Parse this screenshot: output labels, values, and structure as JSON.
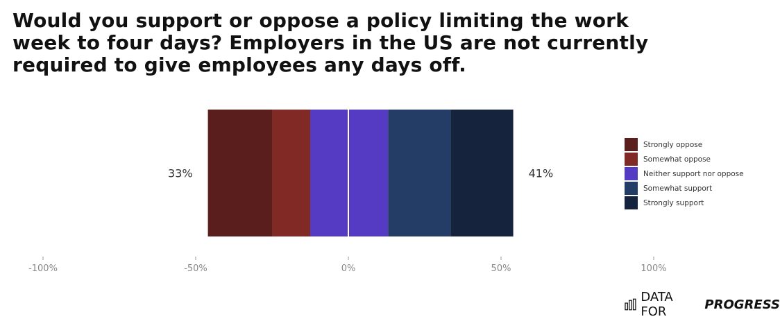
{
  "chart_data": {
    "type": "bar",
    "subtype": "diverging-stacked",
    "title": "Would you support or oppose a policy limiting the work week to four days? Employers in the US are not currently required to give employees any days off.",
    "xlim": [
      -100,
      100
    ],
    "x_ticks": [
      -100,
      -50,
      0,
      50,
      100
    ],
    "x_tick_labels": [
      "-100%",
      "-50%",
      "0%",
      "50%",
      "100%"
    ],
    "segments": [
      {
        "name": "Strongly oppose",
        "start": -46,
        "end": -25,
        "color": "#5a1f1c"
      },
      {
        "name": "Somewhat oppose",
        "start": -25,
        "end": -12.5,
        "color": "#812a25"
      },
      {
        "name": "Neither support nor oppose",
        "start": -12.5,
        "end": 13,
        "color": "#553bc3"
      },
      {
        "name": "Somewhat support",
        "start": 13,
        "end": 33.5,
        "color": "#233d67"
      },
      {
        "name": "Strongly support",
        "start": 33.5,
        "end": 54,
        "color": "#15243c"
      }
    ],
    "oppose_total_label": "33%",
    "support_total_label": "41%",
    "legend_position": "right"
  },
  "legend": [
    {
      "label": "Strongly oppose",
      "color": "#5a1f1c"
    },
    {
      "label": "Somewhat oppose",
      "color": "#812a25"
    },
    {
      "label": "Neither support nor oppose",
      "color": "#553bc3"
    },
    {
      "label": "Somewhat support",
      "color": "#233d67"
    },
    {
      "label": "Strongly support",
      "color": "#15243c"
    }
  ],
  "brand": {
    "prefix": "DATA FOR",
    "strong": "PROGRESS",
    "icon": "bar-chart-icon"
  }
}
